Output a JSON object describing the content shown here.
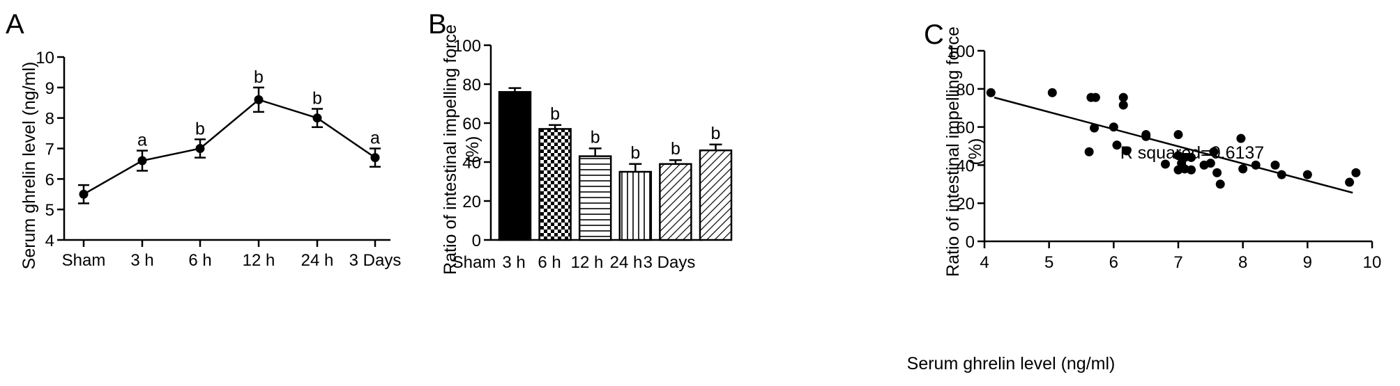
{
  "figure": {
    "panels": [
      {
        "letter": "A"
      },
      {
        "letter": "B"
      },
      {
        "letter": "C"
      }
    ]
  },
  "chart_data": [
    {
      "type": "line",
      "panel": "A",
      "categories": [
        "Sham",
        "3 h",
        "6 h",
        "12 h",
        "24 h",
        "3 Days"
      ],
      "values": [
        5.5,
        6.6,
        7.0,
        8.6,
        8.0,
        6.7
      ],
      "errors": [
        0.3,
        0.33,
        0.3,
        0.4,
        0.3,
        0.3
      ],
      "significance": [
        "",
        "a",
        "b",
        "b",
        "b",
        "a"
      ],
      "xlabel": "",
      "ylabel": "Serum ghrelin level (ng/ml)",
      "ylim": [
        4,
        10
      ],
      "yticks": [
        4,
        5,
        6,
        7,
        8,
        9,
        10
      ],
      "grid": false,
      "color": "#000000"
    },
    {
      "type": "bar",
      "panel": "B",
      "categories": [
        "Sham",
        "3 h",
        "6 h",
        "12 h",
        "24 h",
        "3 Days"
      ],
      "values": [
        76,
        57,
        43,
        35,
        39,
        46
      ],
      "errors": [
        2,
        2,
        4,
        4,
        2,
        3
      ],
      "significance": [
        "",
        "b",
        "b",
        "b",
        "b",
        "b"
      ],
      "fill_patterns": [
        "solid",
        "checker",
        "horizontal",
        "vertical",
        "diagonal",
        "diagonal"
      ],
      "xlabel": "",
      "ylabel": "Ratio of intestinal impelling force (%)",
      "ylim": [
        0,
        100
      ],
      "yticks": [
        0,
        20,
        40,
        60,
        80,
        100
      ],
      "grid": false,
      "color": "#000000"
    },
    {
      "type": "scatter",
      "panel": "C",
      "points": [
        [
          4.1,
          78
        ],
        [
          5.05,
          78
        ],
        [
          5.65,
          75.5
        ],
        [
          5.72,
          75.5
        ],
        [
          6.15,
          75.5
        ],
        [
          6.15,
          71.5
        ],
        [
          5.7,
          59.5
        ],
        [
          6.0,
          60
        ],
        [
          6.5,
          56
        ],
        [
          6.5,
          55
        ],
        [
          7.0,
          56
        ],
        [
          7.97,
          54
        ],
        [
          5.62,
          47
        ],
        [
          6.05,
          50.5
        ],
        [
          6.2,
          47.5
        ],
        [
          6.8,
          40.5
        ],
        [
          7.0,
          45
        ],
        [
          7.1,
          44
        ],
        [
          7.2,
          44
        ],
        [
          7.05,
          41
        ],
        [
          7.1,
          38
        ],
        [
          7.2,
          37.5
        ],
        [
          7.0,
          37.5
        ],
        [
          7.4,
          40
        ],
        [
          7.5,
          41
        ],
        [
          7.55,
          47
        ],
        [
          7.6,
          36
        ],
        [
          7.65,
          30
        ],
        [
          8.0,
          38
        ],
        [
          8.2,
          40
        ],
        [
          8.5,
          40
        ],
        [
          8.6,
          35
        ],
        [
          9.0,
          35
        ],
        [
          9.65,
          31
        ],
        [
          9.75,
          36
        ]
      ],
      "trendline": {
        "x": [
          4.15,
          9.7
        ],
        "y": [
          75.5,
          25.5
        ]
      },
      "annotation": "R squared=0.6137",
      "xlabel": "Serum ghrelin level (ng/ml)",
      "ylabel": "Ratio of intestinal impelling force (%)",
      "xlim": [
        4,
        10
      ],
      "xticks": [
        4,
        5,
        6,
        7,
        8,
        9,
        10
      ],
      "ylim": [
        0,
        100
      ],
      "yticks": [
        0,
        20,
        40,
        60,
        80,
        100
      ],
      "grid": false,
      "color": "#000000"
    }
  ]
}
